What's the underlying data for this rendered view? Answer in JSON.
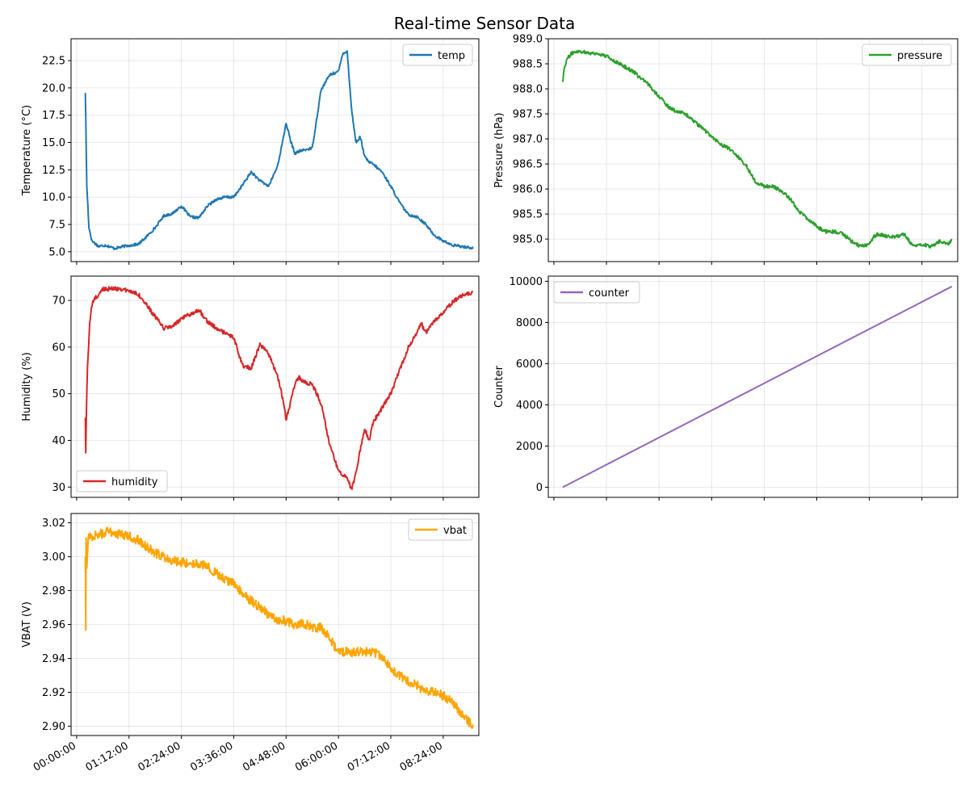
{
  "figure": {
    "title": "Real-time Sensor Data"
  },
  "shared_time_ticks": [
    "00:00:00",
    "01:12:00",
    "02:24:00",
    "03:36:00",
    "04:48:00",
    "06:00:00",
    "07:12:00",
    "08:24:00"
  ],
  "chart_data": [
    {
      "id": "temp",
      "type": "line",
      "ylabel": "Temperature (°C)",
      "legend_label": "temp",
      "legend_loc": "upper-right",
      "color": "#1f77b4",
      "grid": true,
      "xlim": [
        "-00:07:40",
        "09:13:00"
      ],
      "ylim": [
        4.1,
        24.5
      ],
      "yticks": [
        5.0,
        7.5,
        10.0,
        12.5,
        15.0,
        17.5,
        20.0,
        22.5
      ],
      "ytick_labels": [
        "5.0",
        "7.5",
        "10.0",
        "12.5",
        "15.0",
        "17.5",
        "20.0",
        "22.5"
      ],
      "x": [
        "00:12:00",
        "00:12:30",
        "00:14:00",
        "00:17:00",
        "00:21:00",
        "00:30:00",
        "00:40:00",
        "00:52:00",
        "01:05:00",
        "01:15:00",
        "01:25:00",
        "01:35:00",
        "01:48:00",
        "02:00:00",
        "02:12:00",
        "02:24:00",
        "02:36:00",
        "02:48:00",
        "03:00:00",
        "03:12:00",
        "03:24:00",
        "03:36:00",
        "03:48:00",
        "04:00:00",
        "04:12:00",
        "04:24:00",
        "04:36:00",
        "04:43:00",
        "04:48:00",
        "04:54:00",
        "05:00:00",
        "05:06:00",
        "05:12:00",
        "05:24:00",
        "05:36:00",
        "05:48:00",
        "06:00:00",
        "06:06:00",
        "06:12:00",
        "06:18:00",
        "06:24:00",
        "06:30:00",
        "06:36:00",
        "06:42:00",
        "06:48:00",
        "07:00:00",
        "07:12:00",
        "07:24:00",
        "07:36:00",
        "07:48:00",
        "08:00:00",
        "08:12:00",
        "08:24:00",
        "08:36:00",
        "08:48:00",
        "09:00:00",
        "09:05:00"
      ],
      "y": [
        19.6,
        17.5,
        11.0,
        7.2,
        6.0,
        5.5,
        5.6,
        5.3,
        5.5,
        5.6,
        5.7,
        6.3,
        7.2,
        8.3,
        8.5,
        9.2,
        8.2,
        8.1,
        9.2,
        9.8,
        10.0,
        10.0,
        11.1,
        12.3,
        11.5,
        11.0,
        12.8,
        15.0,
        16.8,
        15.2,
        14.0,
        14.2,
        14.3,
        14.5,
        19.8,
        21.2,
        21.5,
        23.2,
        23.3,
        18.0,
        15.0,
        15.5,
        13.7,
        13.2,
        13.0,
        12.3,
        11.0,
        9.5,
        8.4,
        8.2,
        7.5,
        6.5,
        6.0,
        5.6,
        5.5,
        5.4,
        5.3
      ]
    },
    {
      "id": "pressure",
      "type": "line",
      "ylabel": "Pressure (hPa)",
      "legend_label": "pressure",
      "legend_loc": "upper-right",
      "color": "#2ca02c",
      "grid": true,
      "xlim": [
        "-00:07:40",
        "09:13:00"
      ],
      "ylim": [
        984.55,
        989.0
      ],
      "yticks": [
        985.0,
        985.5,
        986.0,
        986.5,
        987.0,
        987.5,
        988.0,
        988.5,
        989.0
      ],
      "ytick_labels": [
        "985.0",
        "985.5",
        "986.0",
        "986.5",
        "987.0",
        "987.5",
        "988.0",
        "988.5",
        "989.0"
      ],
      "x": [
        "00:12:00",
        "00:14:00",
        "00:18:00",
        "00:24:00",
        "00:30:00",
        "00:36:00",
        "00:48:00",
        "01:00:00",
        "01:12:00",
        "01:24:00",
        "01:36:00",
        "01:48:00",
        "02:00:00",
        "02:12:00",
        "02:24:00",
        "02:36:00",
        "02:48:00",
        "03:00:00",
        "03:12:00",
        "03:24:00",
        "03:36:00",
        "03:48:00",
        "04:00:00",
        "04:12:00",
        "04:24:00",
        "04:36:00",
        "04:48:00",
        "05:00:00",
        "05:12:00",
        "05:24:00",
        "05:36:00",
        "05:48:00",
        "06:00:00",
        "06:12:00",
        "06:24:00",
        "06:36:00",
        "06:48:00",
        "07:00:00",
        "07:12:00",
        "07:18:00",
        "07:24:00",
        "07:36:00",
        "07:48:00",
        "08:00:00",
        "08:12:00",
        "08:24:00",
        "08:36:00",
        "08:48:00",
        "09:00:00",
        "09:05:00"
      ],
      "y": [
        988.15,
        988.4,
        988.6,
        988.7,
        988.75,
        988.75,
        988.72,
        988.7,
        988.65,
        988.55,
        988.45,
        988.35,
        988.2,
        988.05,
        987.85,
        987.65,
        987.55,
        987.5,
        987.35,
        987.2,
        987.05,
        986.9,
        986.8,
        986.65,
        986.45,
        986.15,
        986.05,
        986.05,
        985.95,
        985.8,
        985.55,
        985.4,
        985.25,
        985.15,
        985.15,
        985.1,
        984.95,
        984.85,
        984.9,
        985.05,
        985.1,
        985.05,
        985.05,
        985.1,
        984.85,
        984.9,
        984.85,
        984.95,
        984.9,
        985.0
      ]
    },
    {
      "id": "humidity",
      "type": "line",
      "ylabel": "Humidity (%)",
      "legend_label": "humidity",
      "legend_loc": "lower-left",
      "color": "#d62728",
      "grid": true,
      "xlim": [
        "-00:07:40",
        "09:13:00"
      ],
      "ylim": [
        27.8,
        75.2
      ],
      "yticks": [
        30,
        40,
        50,
        60,
        70
      ],
      "ytick_labels": [
        "30",
        "40",
        "50",
        "60",
        "70"
      ],
      "x": [
        "00:12:00",
        "00:12:30",
        "00:13:30",
        "00:15:00",
        "00:18:00",
        "00:21:00",
        "00:25:00",
        "00:30:00",
        "00:36:00",
        "00:45:00",
        "01:00:00",
        "01:12:00",
        "01:24:00",
        "01:36:00",
        "01:48:00",
        "02:00:00",
        "02:12:00",
        "02:24:00",
        "02:36:00",
        "02:48:00",
        "03:00:00",
        "03:12:00",
        "03:24:00",
        "03:36:00",
        "03:48:00",
        "04:00:00",
        "04:12:00",
        "04:24:00",
        "04:36:00",
        "04:42:00",
        "04:48:00",
        "04:54:00",
        "05:00:00",
        "05:06:00",
        "05:12:00",
        "05:24:00",
        "05:36:00",
        "05:48:00",
        "06:00:00",
        "06:12:00",
        "06:18:00",
        "06:24:00",
        "06:30:00",
        "06:36:00",
        "06:42:00",
        "06:48:00",
        "07:00:00",
        "07:12:00",
        "07:24:00",
        "07:36:00",
        "07:48:00",
        "07:54:00",
        "08:00:00",
        "08:12:00",
        "08:24:00",
        "08:36:00",
        "08:48:00",
        "09:00:00",
        "09:05:00"
      ],
      "y": [
        45.0,
        37.0,
        47.0,
        56.0,
        65.0,
        69.0,
        70.5,
        71.0,
        72.5,
        72.5,
        72.5,
        72.0,
        71.5,
        69.0,
        66.5,
        64.0,
        64.5,
        66.0,
        67.0,
        68.0,
        65.5,
        64.0,
        63.0,
        62.0,
        56.0,
        55.5,
        60.5,
        58.5,
        54.0,
        50.0,
        44.5,
        48.0,
        52.0,
        53.5,
        52.5,
        52.0,
        48.0,
        39.0,
        33.5,
        32.0,
        29.5,
        33.0,
        38.0,
        42.5,
        40.0,
        44.0,
        47.0,
        50.0,
        55.0,
        60.0,
        63.0,
        65.0,
        63.0,
        65.5,
        67.5,
        69.5,
        71.0,
        71.5,
        71.8
      ]
    },
    {
      "id": "counter",
      "type": "line",
      "ylabel": "Counter",
      "legend_label": "counter",
      "legend_loc": "upper-left",
      "color": "#9467bd",
      "grid": true,
      "xlim": [
        "-00:07:40",
        "09:13:00"
      ],
      "ylim": [
        -490,
        10250
      ],
      "yticks": [
        0,
        2000,
        4000,
        6000,
        8000,
        10000
      ],
      "ytick_labels": [
        "0",
        "2000",
        "4000",
        "6000",
        "8000",
        "10000"
      ],
      "x": [
        "00:12:00",
        "09:05:00"
      ],
      "y": [
        0,
        9750
      ]
    },
    {
      "id": "vbat",
      "type": "line",
      "ylabel": "VBAT (V)",
      "legend_label": "vbat",
      "legend_loc": "upper-right",
      "color": "#ffa500",
      "grid": true,
      "xlabel": "",
      "xlim": [
        "-00:07:40",
        "09:13:00"
      ],
      "ylim": [
        2.8945,
        3.0255
      ],
      "yticks": [
        2.9,
        2.92,
        2.94,
        2.96,
        2.98,
        3.0,
        3.02
      ],
      "ytick_labels": [
        "2.90",
        "2.92",
        "2.94",
        "2.96",
        "2.98",
        "3.00",
        "3.02"
      ],
      "x": [
        "00:12:00",
        "00:12:30",
        "00:13:00",
        "00:14:00",
        "00:16:00",
        "00:20:00",
        "00:30:00",
        "00:45:00",
        "01:00:00",
        "01:12:00",
        "01:24:00",
        "01:36:00",
        "01:48:00",
        "02:00:00",
        "02:12:00",
        "02:24:00",
        "02:36:00",
        "02:48:00",
        "03:00:00",
        "03:12:00",
        "03:24:00",
        "03:36:00",
        "03:48:00",
        "04:00:00",
        "04:12:00",
        "04:24:00",
        "04:36:00",
        "04:48:00",
        "05:00:00",
        "05:12:00",
        "05:24:00",
        "05:36:00",
        "05:48:00",
        "06:00:00",
        "06:12:00",
        "06:24:00",
        "06:36:00",
        "06:48:00",
        "07:00:00",
        "07:12:00",
        "07:24:00",
        "07:36:00",
        "07:48:00",
        "08:00:00",
        "08:12:00",
        "08:24:00",
        "08:36:00",
        "08:48:00",
        "09:00:00",
        "09:05:00"
      ],
      "y": [
        3.0,
        2.958,
        3.01,
        2.995,
        3.012,
        3.012,
        3.013,
        3.015,
        3.013,
        3.012,
        3.01,
        3.006,
        3.002,
        3.0,
        2.998,
        2.997,
        2.996,
        2.996,
        2.994,
        2.99,
        2.987,
        2.984,
        2.978,
        2.974,
        2.97,
        2.966,
        2.963,
        2.962,
        2.96,
        2.961,
        2.958,
        2.958,
        2.952,
        2.944,
        2.944,
        2.944,
        2.944,
        2.944,
        2.94,
        2.934,
        2.93,
        2.926,
        2.924,
        2.92,
        2.92,
        2.918,
        2.914,
        2.908,
        2.902,
        2.901
      ]
    }
  ]
}
